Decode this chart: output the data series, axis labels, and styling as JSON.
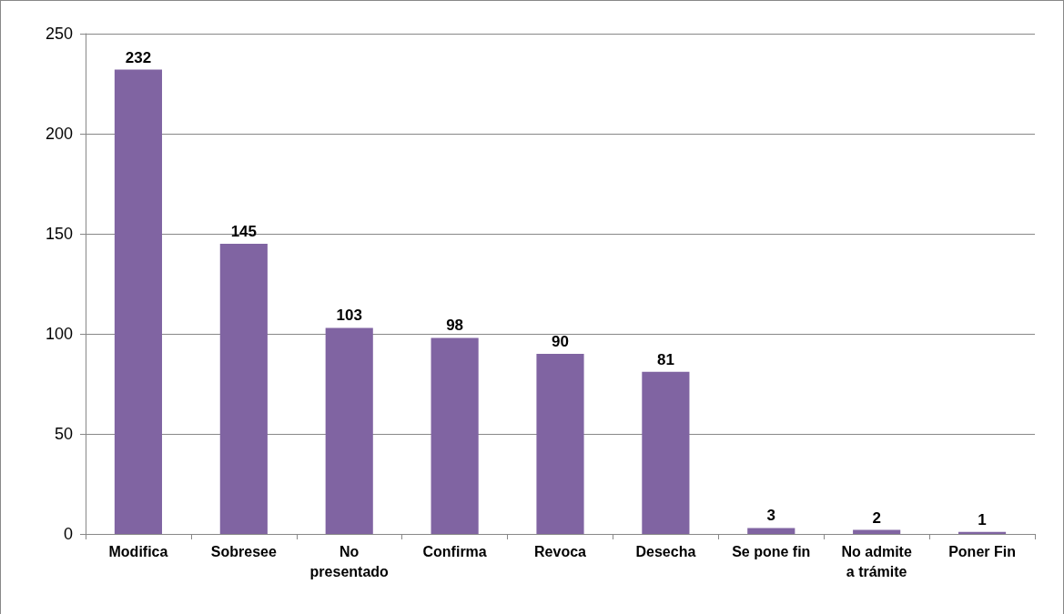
{
  "chart_data": {
    "type": "bar",
    "categories": [
      "Modifica",
      "Sobresee",
      "No\npresentado",
      "Confirma",
      "Revoca",
      "Desecha",
      "Se pone fin",
      "No admite\na trámite",
      "Poner Fin"
    ],
    "values": [
      232,
      145,
      103,
      98,
      90,
      81,
      3,
      2,
      1
    ],
    "color": "#8064a2",
    "ylim": [
      0,
      250
    ],
    "yticks": [
      0,
      50,
      100,
      150,
      200,
      250
    ],
    "grid": "y",
    "data_labels": true
  }
}
